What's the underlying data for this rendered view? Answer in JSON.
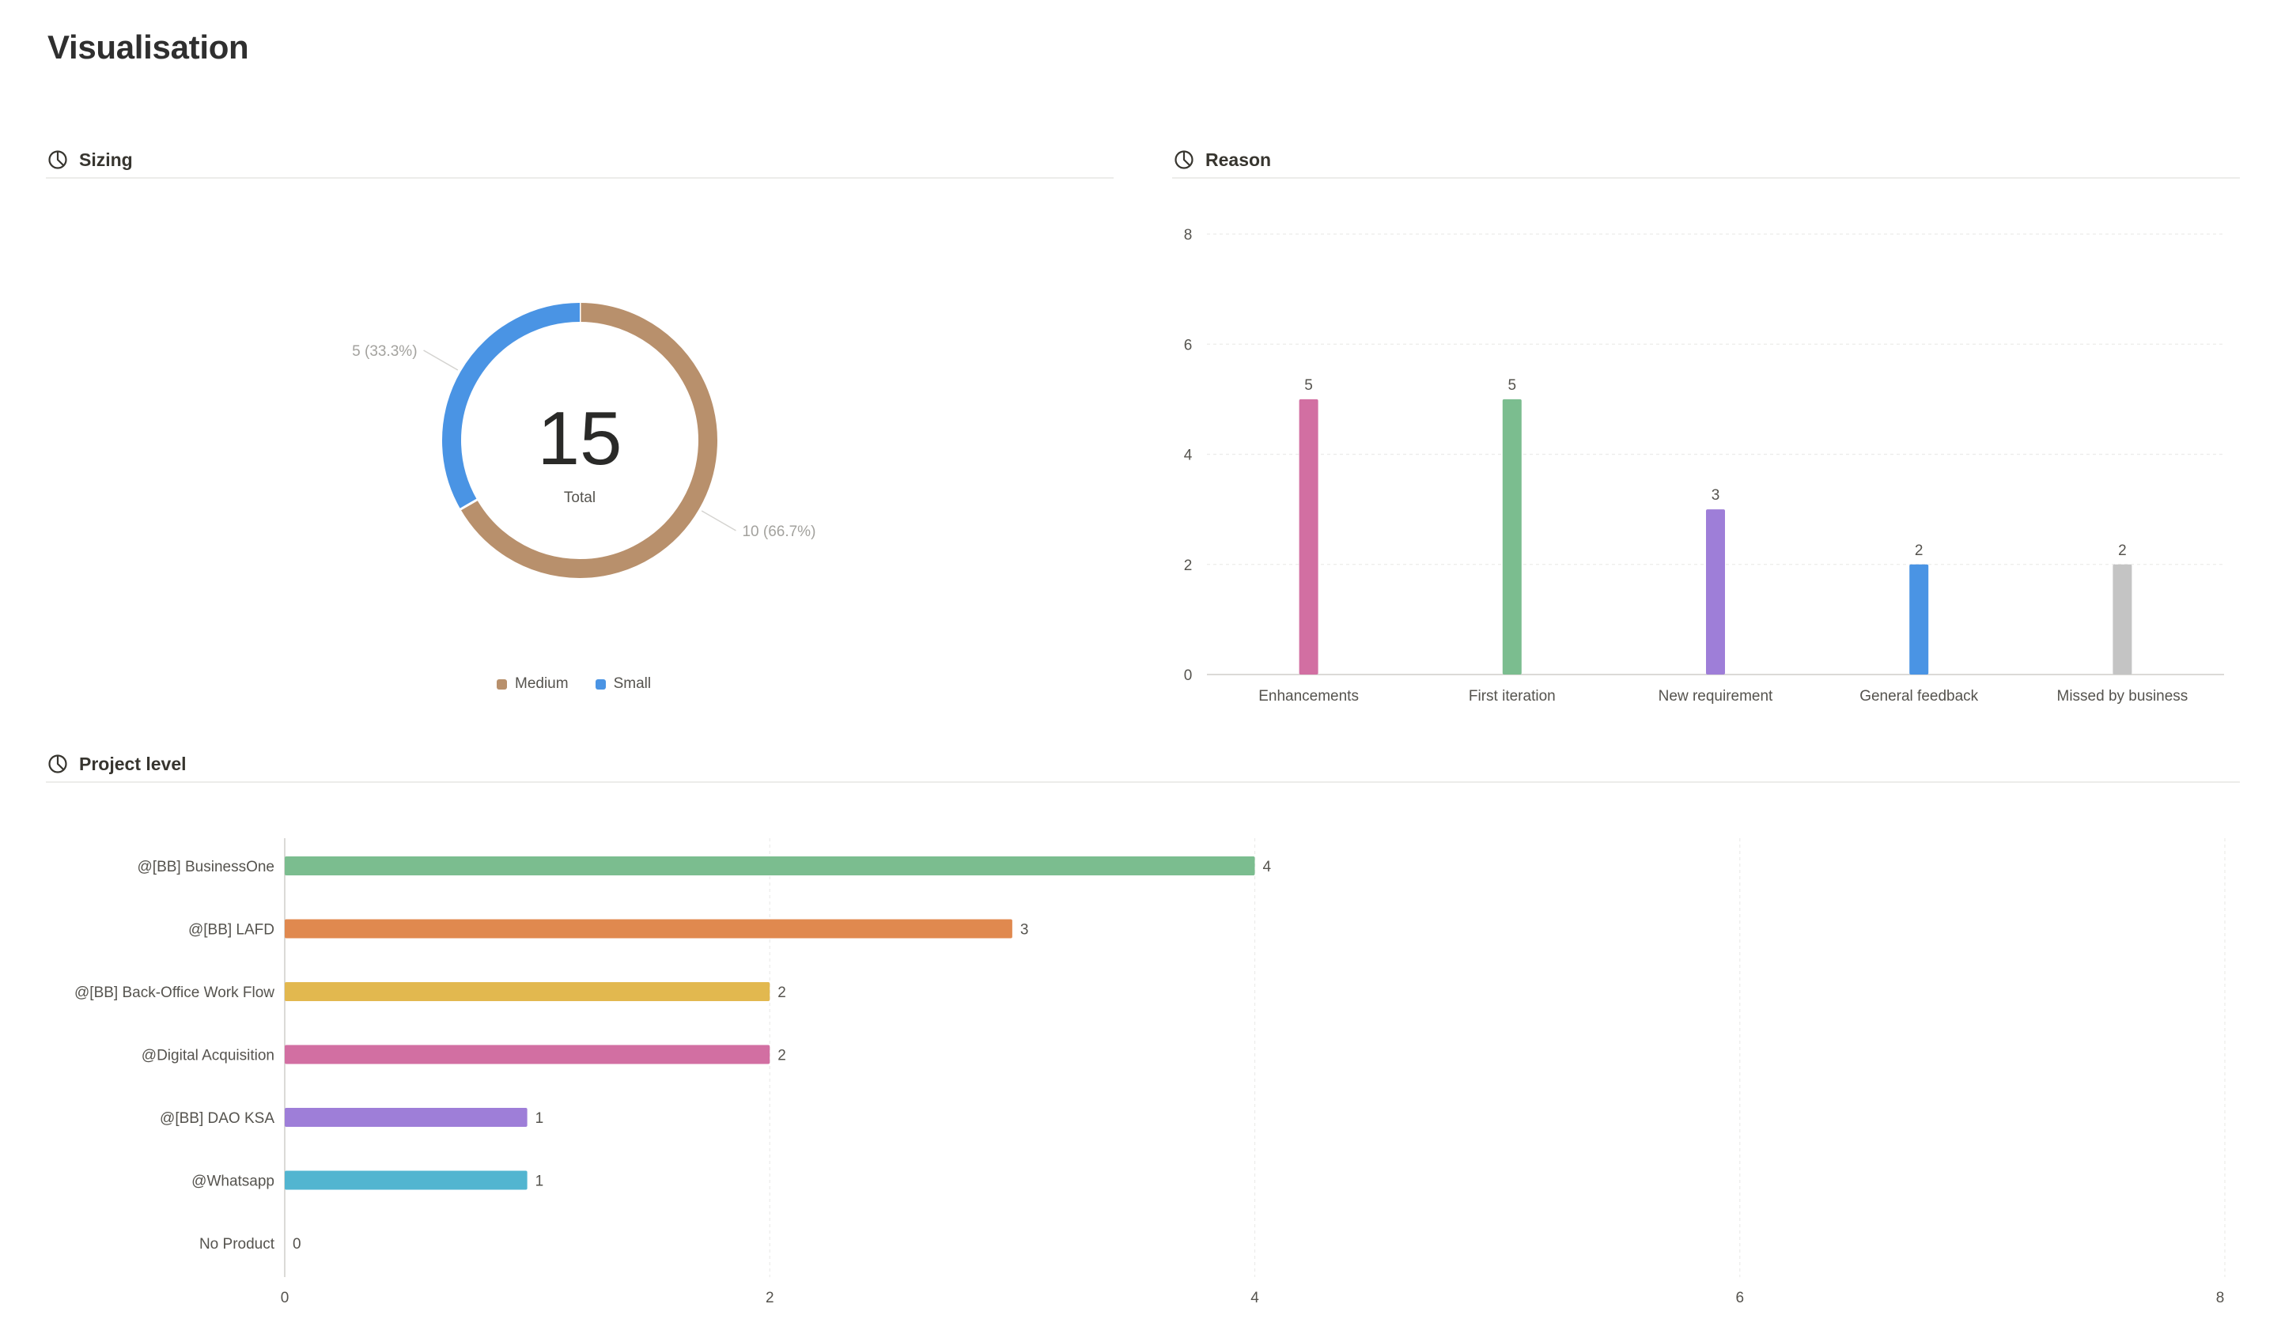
{
  "page_title": "Visualisation",
  "panels": {
    "sizing": {
      "title": "Sizing",
      "icon": "pie-chart-icon"
    },
    "reason": {
      "title": "Reason",
      "icon": "pie-chart-icon"
    },
    "project": {
      "title": "Project level",
      "icon": "pie-chart-icon"
    }
  },
  "chart_data": [
    {
      "id": "sizing",
      "type": "pie",
      "title": "Sizing",
      "total": 15,
      "total_label": "Total",
      "slices": [
        {
          "name": "Medium",
          "value": 10,
          "label": "10 (66.7%)",
          "color": "#b8906c"
        },
        {
          "name": "Small",
          "value": 5,
          "label": "5 (33.3%)",
          "color": "#4a94e4"
        }
      ],
      "legend_position": "bottom"
    },
    {
      "id": "reason",
      "type": "bar",
      "title": "Reason",
      "categories": [
        "Enhancements",
        "First iteration",
        "New requirement",
        "General feedback",
        "Missed by business"
      ],
      "values": [
        5,
        5,
        3,
        2,
        2
      ],
      "colors": [
        "#d26fa2",
        "#7bbd8f",
        "#9e7ed8",
        "#4a94e4",
        "#c4c4c4"
      ],
      "ylim": [
        0,
        8
      ],
      "yticks": [
        0,
        2,
        4,
        6,
        8
      ],
      "grid": true
    },
    {
      "id": "project",
      "type": "bar",
      "orientation": "horizontal",
      "title": "Project level",
      "categories": [
        "@[BB] BusinessOne",
        "@[BB] LAFD",
        "@[BB] Back-Office Work Flow",
        "@Digital Acquisition",
        "@[BB] DAO KSA",
        "@Whatsapp",
        "No Product"
      ],
      "values": [
        4,
        3,
        2,
        2,
        1,
        1,
        0
      ],
      "colors": [
        "#7bbd8f",
        "#e0894f",
        "#e2b84f",
        "#d26fa2",
        "#9e7ed8",
        "#52b5d0",
        "#c4c4c4"
      ],
      "xlim": [
        0,
        8
      ],
      "xticks": [
        0,
        2,
        4,
        6,
        8
      ],
      "grid": true
    }
  ]
}
